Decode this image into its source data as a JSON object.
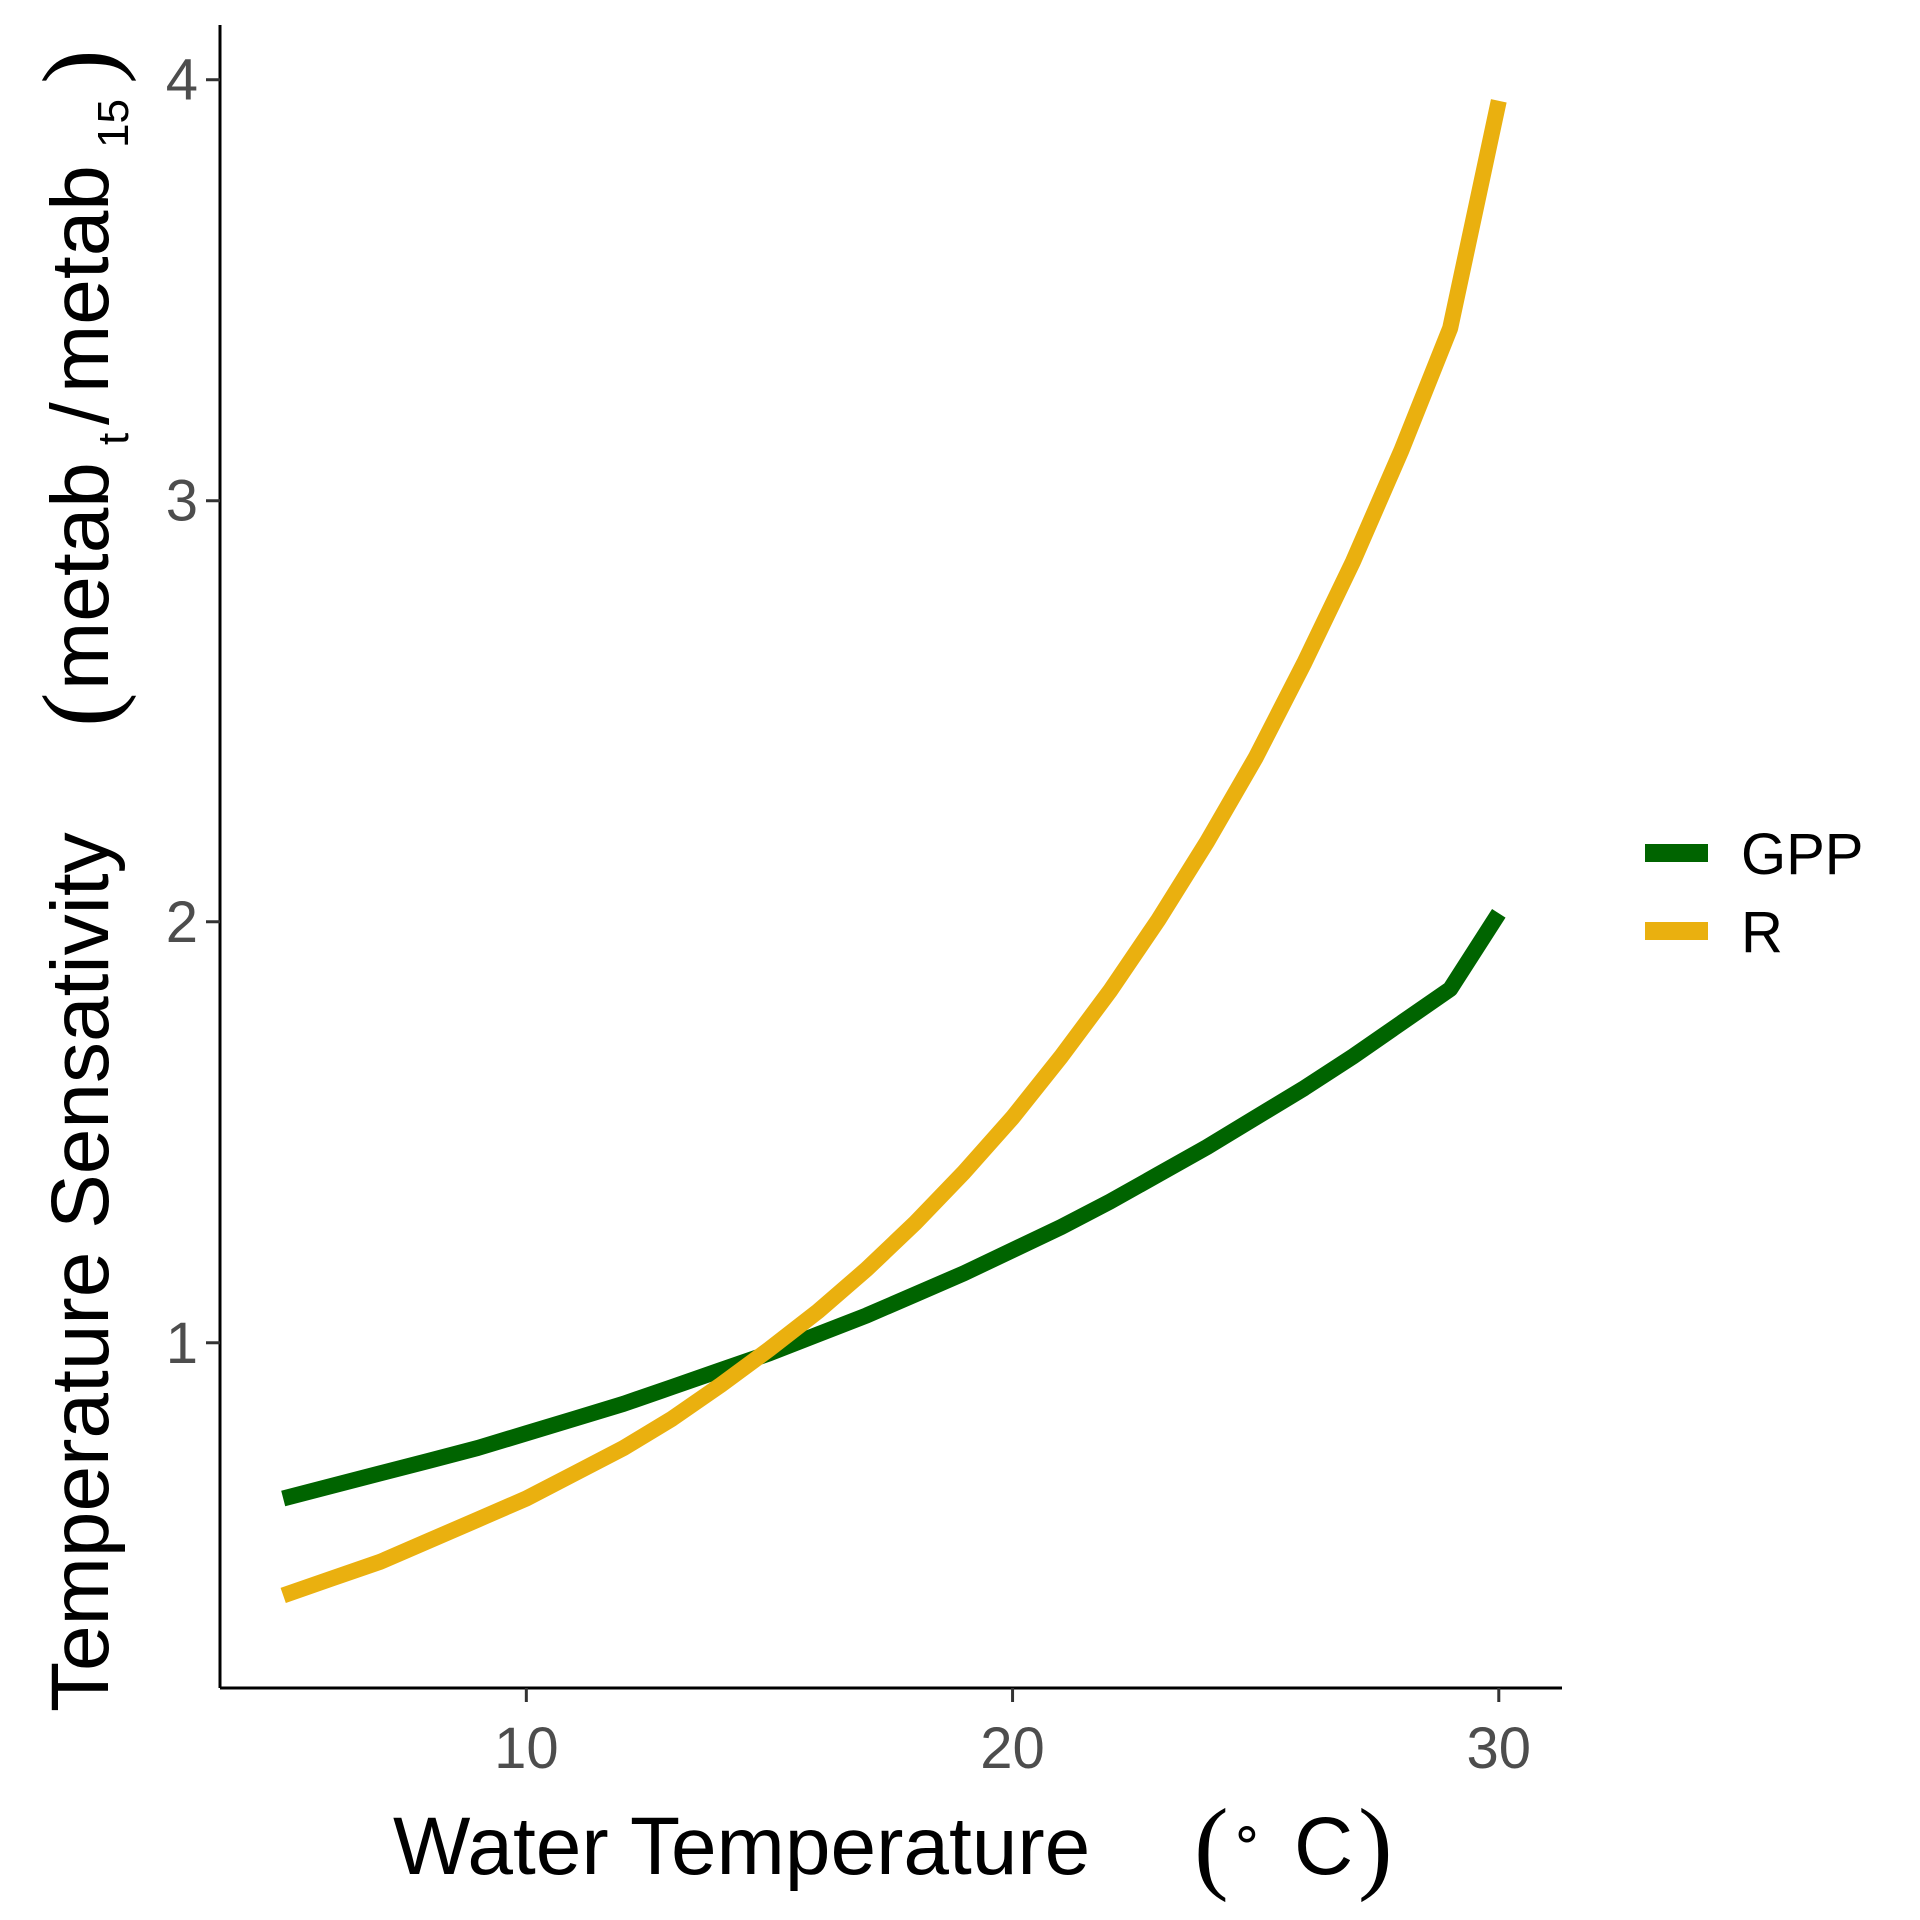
{
  "chart_data": {
    "type": "line",
    "title": "",
    "xlabel": "Water Temperature (° C)",
    "ylabel": "Temperature Sensativity (metab_t / metab_15)",
    "xlabel_parts": {
      "text": "Water Temperature",
      "degree": "∘",
      "unit": "C"
    },
    "ylabel_parts": {
      "text": "Temperature Sensativity",
      "numerator": "metab",
      "numerator_sub": "t",
      "slash": "/",
      "denominator": "metab",
      "denominator_sub": "15"
    },
    "xlim": [
      3.7,
      31.3
    ],
    "ylim": [
      0.18,
      4.13
    ],
    "x_ticks": [
      10,
      20,
      30
    ],
    "y_ticks": [
      1,
      2,
      3,
      4
    ],
    "x_tick_labels": [
      "10",
      "20",
      "30"
    ],
    "y_tick_labels": [
      "1",
      "2",
      "3",
      "4"
    ],
    "grid": false,
    "legend_position": "right",
    "x": [
      5,
      6,
      7,
      8,
      9,
      10,
      11,
      12,
      13,
      14,
      15,
      16,
      17,
      18,
      19,
      20,
      21,
      22,
      23,
      24,
      25,
      26,
      27,
      28,
      29,
      30
    ],
    "series": [
      {
        "name": "GPP",
        "color": "#006400",
        "values": [
          0.63,
          0.66,
          0.69,
          0.72,
          0.75,
          0.785,
          0.82,
          0.855,
          0.895,
          0.935,
          0.975,
          1.02,
          1.065,
          1.115,
          1.165,
          1.22,
          1.275,
          1.335,
          1.4,
          1.465,
          1.535,
          1.605,
          1.68,
          1.76,
          1.84,
          2.02
        ]
      },
      {
        "name": "R",
        "color": "#EAB00F",
        "values": [
          0.4,
          0.44,
          0.48,
          0.53,
          0.58,
          0.63,
          0.69,
          0.75,
          0.82,
          0.9,
          0.985,
          1.075,
          1.175,
          1.285,
          1.405,
          1.535,
          1.68,
          1.835,
          2.005,
          2.19,
          2.39,
          2.615,
          2.855,
          3.12,
          3.41,
          3.95
        ]
      }
    ]
  }
}
